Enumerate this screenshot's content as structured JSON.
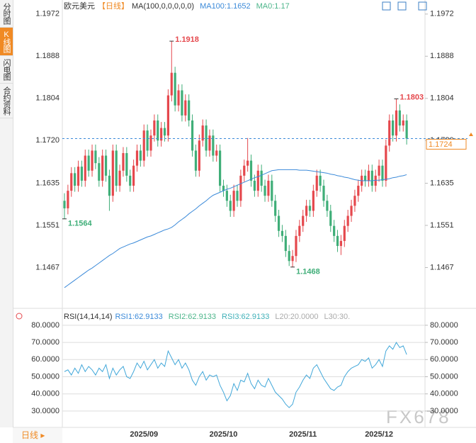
{
  "sidebar": {
    "tabs": [
      "分时图",
      "K线图",
      "闪电图",
      "合约资料"
    ]
  },
  "footer": {
    "period": "日线"
  },
  "watermark": "FX678",
  "chart_data": [
    {
      "type": "candlestick",
      "title": "欧元美元",
      "period": "【日线】",
      "legend": [
        {
          "text": "MA(100,0,0,0,0,0)",
          "color": "#333333"
        },
        {
          "text": "MA100:1.1652",
          "color": "#3b8ad9"
        },
        {
          "text": "MA0:1.17",
          "color": "#4cb58a"
        }
      ],
      "up_color": "#e5484d",
      "down_color": "#3fae78",
      "grid": false,
      "categories": [
        null,
        null,
        null,
        null,
        null,
        null,
        null,
        null,
        null,
        null,
        null,
        null,
        null,
        null,
        null,
        null,
        null,
        null,
        null,
        null,
        null,
        null,
        null,
        "2025/09",
        null,
        null,
        null,
        null,
        null,
        null,
        null,
        null,
        null,
        null,
        null,
        null,
        null,
        null,
        null,
        null,
        null,
        null,
        null,
        null,
        null,
        null,
        "2025/10",
        null,
        null,
        null,
        null,
        null,
        null,
        null,
        null,
        null,
        null,
        null,
        null,
        null,
        null,
        null,
        null,
        null,
        null,
        null,
        null,
        null,
        null,
        "2025/11",
        null,
        null,
        null,
        null,
        null,
        null,
        null,
        null,
        null,
        null,
        null,
        null,
        null,
        null,
        null,
        null,
        null,
        null,
        null,
        null,
        null,
        "2025/12",
        null,
        null,
        null,
        null,
        null,
        null,
        null,
        null
      ],
      "open": [
        1.16,
        1.1585,
        1.162,
        1.1655,
        1.163,
        1.1668,
        1.164,
        1.169,
        1.166,
        1.17,
        1.1675,
        1.164,
        1.169,
        1.165,
        1.161,
        1.17,
        1.163,
        1.166,
        1.1695,
        1.165,
        1.163,
        1.167,
        1.17,
        1.168,
        1.174,
        1.17,
        1.173,
        1.176,
        1.172,
        1.1745,
        1.173,
        1.181,
        1.1855,
        1.179,
        1.182,
        1.177,
        1.18,
        1.176,
        1.17,
        1.166,
        1.172,
        1.175,
        1.17,
        1.173,
        1.169,
        1.17,
        1.163,
        1.162,
        1.16,
        1.158,
        1.162,
        1.16,
        1.165,
        1.167,
        1.168,
        1.164,
        1.162,
        1.166,
        1.163,
        1.161,
        1.164,
        1.16,
        1.157,
        1.154,
        1.153,
        1.15,
        1.148,
        1.149,
        1.153,
        1.155,
        1.157,
        1.159,
        1.158,
        1.162,
        1.165,
        1.163,
        1.16,
        1.158,
        1.155,
        1.153,
        1.151,
        1.152,
        1.155,
        1.157,
        1.159,
        1.161,
        1.163,
        1.165,
        1.164,
        1.166,
        1.163,
        1.165,
        1.167,
        1.164,
        1.171,
        1.176,
        1.173,
        1.178,
        1.175,
        1.176
      ],
      "high": [
        1.1615,
        1.1632,
        1.1667,
        1.1667,
        1.168,
        1.168,
        1.1702,
        1.1702,
        1.1712,
        1.1712,
        1.1687,
        1.1702,
        1.1702,
        1.1662,
        1.1712,
        1.1712,
        1.1672,
        1.1707,
        1.1707,
        1.1662,
        1.1682,
        1.1712,
        1.1712,
        1.1752,
        1.1752,
        1.1742,
        1.1772,
        1.1772,
        1.1757,
        1.1757,
        1.1822,
        1.1918,
        1.1867,
        1.1832,
        1.1832,
        1.1812,
        1.1812,
        1.1772,
        1.1712,
        1.1732,
        1.1762,
        1.1762,
        1.1742,
        1.1742,
        1.1712,
        1.1712,
        1.1642,
        1.1632,
        1.1612,
        1.1632,
        1.1632,
        1.1662,
        1.1682,
        1.1725,
        1.1692,
        1.1652,
        1.1672,
        1.1672,
        1.1642,
        1.1652,
        1.1652,
        1.1612,
        1.1582,
        1.1552,
        1.1542,
        1.1512,
        1.1502,
        1.1542,
        1.1562,
        1.1582,
        1.1602,
        1.1602,
        1.1632,
        1.1662,
        1.1662,
        1.1642,
        1.1612,
        1.1592,
        1.1562,
        1.1542,
        1.1532,
        1.1562,
        1.1582,
        1.1602,
        1.1622,
        1.1642,
        1.1662,
        1.1662,
        1.1672,
        1.1672,
        1.1662,
        1.1682,
        1.1682,
        1.1722,
        1.1772,
        1.1772,
        1.1803,
        1.1792,
        1.1772,
        1.1772
      ],
      "low": [
        1.1564,
        1.1573,
        1.1608,
        1.1618,
        1.1618,
        1.1628,
        1.1628,
        1.1648,
        1.1648,
        1.1663,
        1.1628,
        1.1628,
        1.1638,
        1.158,
        1.1598,
        1.1618,
        1.1618,
        1.1648,
        1.1638,
        1.1618,
        1.1618,
        1.1658,
        1.1668,
        1.1668,
        1.1688,
        1.1688,
        1.1718,
        1.1708,
        1.1708,
        1.1718,
        1.1718,
        1.1798,
        1.1778,
        1.1778,
        1.1758,
        1.1758,
        1.1748,
        1.1688,
        1.1648,
        1.1648,
        1.1708,
        1.1688,
        1.1688,
        1.1678,
        1.1678,
        1.1618,
        1.1608,
        1.1588,
        1.1568,
        1.1568,
        1.1588,
        1.1588,
        1.1638,
        1.1658,
        1.1628,
        1.1608,
        1.1608,
        1.1618,
        1.1598,
        1.1598,
        1.1588,
        1.1558,
        1.1528,
        1.1518,
        1.1488,
        1.147,
        1.1468,
        1.1478,
        1.1518,
        1.1538,
        1.1558,
        1.1568,
        1.1568,
        1.1608,
        1.1618,
        1.1588,
        1.1568,
        1.1538,
        1.1518,
        1.1498,
        1.1492,
        1.1508,
        1.1538,
        1.1558,
        1.1578,
        1.1598,
        1.1618,
        1.1628,
        1.1628,
        1.1618,
        1.1618,
        1.1638,
        1.1628,
        1.1628,
        1.1698,
        1.1718,
        1.1718,
        1.1738,
        1.1738,
        1.1712
      ],
      "close": [
        1.1585,
        1.162,
        1.1655,
        1.163,
        1.1668,
        1.164,
        1.169,
        1.166,
        1.17,
        1.1675,
        1.164,
        1.169,
        1.165,
        1.161,
        1.17,
        1.163,
        1.166,
        1.1695,
        1.165,
        1.163,
        1.167,
        1.17,
        1.168,
        1.174,
        1.17,
        1.173,
        1.176,
        1.172,
        1.1745,
        1.173,
        1.181,
        1.1855,
        1.179,
        1.182,
        1.177,
        1.18,
        1.176,
        1.17,
        1.166,
        1.172,
        1.175,
        1.17,
        1.173,
        1.169,
        1.17,
        1.163,
        1.162,
        1.16,
        1.158,
        1.162,
        1.16,
        1.165,
        1.167,
        1.168,
        1.164,
        1.162,
        1.166,
        1.163,
        1.161,
        1.164,
        1.16,
        1.157,
        1.154,
        1.153,
        1.15,
        1.148,
        1.149,
        1.153,
        1.155,
        1.157,
        1.159,
        1.158,
        1.162,
        1.165,
        1.163,
        1.16,
        1.158,
        1.155,
        1.153,
        1.151,
        1.152,
        1.155,
        1.157,
        1.159,
        1.161,
        1.163,
        1.165,
        1.164,
        1.166,
        1.163,
        1.165,
        1.167,
        1.164,
        1.171,
        1.176,
        1.173,
        1.178,
        1.175,
        1.176,
        1.1724
      ],
      "series": [
        {
          "color": "#3b8ad9",
          "values": [
            1.1427,
            1.1432,
            1.1437,
            1.1442,
            1.1447,
            1.1452,
            1.1457,
            1.1462,
            1.1466,
            1.1471,
            1.1476,
            1.1481,
            1.1486,
            1.1491,
            1.1495,
            1.15,
            1.1505,
            1.1508,
            1.1511,
            1.1514,
            1.1516,
            1.1519,
            1.1522,
            1.1525,
            1.1528,
            1.153,
            1.1533,
            1.1536,
            1.1539,
            1.1542,
            1.1544,
            1.1547,
            1.1552,
            1.1558,
            1.1563,
            1.1568,
            1.1574,
            1.1579,
            1.1584,
            1.159,
            1.1595,
            1.16,
            1.1606,
            1.1611,
            1.1614,
            1.1617,
            1.162,
            1.1623,
            1.1625,
            1.1628,
            1.1631,
            1.1634,
            1.1637,
            1.164,
            1.1643,
            1.1646,
            1.1648,
            1.1651,
            1.1654,
            1.1657,
            1.166,
            1.1661,
            1.1662,
            1.1662,
            1.1662,
            1.1662,
            1.1662,
            1.1662,
            1.1661,
            1.1661,
            1.1661,
            1.166,
            1.1659,
            1.1658,
            1.1657,
            1.1656,
            1.1655,
            1.1653,
            1.1652,
            1.165,
            1.1649,
            1.1647,
            1.1646,
            1.1644,
            1.1642,
            1.1641,
            1.164,
            1.164,
            1.164,
            1.164,
            1.1641,
            1.1641,
            1.1642,
            1.1643,
            1.1644,
            1.1646,
            1.1647,
            1.1649,
            1.165,
            1.1652
          ]
        }
      ],
      "ylim": [
        1.139,
        1.2
      ],
      "yticks": [
        1.1467,
        1.1551,
        1.1635,
        {
          "value": 1.172,
          "label": "1.1720"
        },
        1.1804,
        1.1888,
        1.1972
      ]
    },
    {
      "type": "line",
      "title": "RSI(14,14,14)",
      "legend": [
        {
          "text": "RSI1:62.9133",
          "color": "#3b8ad9"
        },
        {
          "text": "RSI2:62.9133",
          "color": "#4cb58a"
        },
        {
          "text": "RSI3:62.9133",
          "color": "#3fb0b8"
        },
        {
          "text": "L20:20.0000",
          "color": "#aaaaaa"
        },
        {
          "text": "L30:30.",
          "color": "#aaaaaa"
        }
      ],
      "grid": true,
      "series": [
        {
          "color": "#41a7d9",
          "values": [
            53,
            54,
            51,
            55,
            52,
            57,
            53,
            56,
            54,
            51,
            55,
            53,
            57,
            49,
            55,
            51,
            54,
            56,
            50,
            49,
            53,
            58,
            55,
            59,
            54,
            57,
            60,
            55,
            58,
            56,
            65,
            61,
            57,
            60,
            55,
            58,
            54,
            48,
            45,
            50,
            53,
            48,
            51,
            50,
            51,
            45,
            41,
            36,
            39,
            46,
            42,
            48,
            47,
            52,
            46,
            43,
            48,
            45,
            44,
            49,
            45,
            41,
            39,
            37,
            34,
            32,
            34,
            41,
            44,
            48,
            51,
            49,
            55,
            57,
            53,
            49,
            46,
            43,
            42,
            44,
            45,
            50,
            53,
            55,
            56,
            57,
            60,
            59,
            61,
            55,
            57,
            60,
            56,
            65,
            68,
            66,
            70,
            67,
            68,
            62.9133
          ]
        }
      ],
      "ylim": [
        21.7,
        87.8
      ],
      "yticks": [
        {
          "value": 80,
          "label": "80.0000"
        },
        {
          "value": 70,
          "label": "70.0000"
        },
        {
          "value": 60,
          "label": "60.0000"
        },
        {
          "value": 50,
          "label": "50.0000"
        },
        {
          "value": 40,
          "label": "40.0000"
        },
        {
          "value": 30,
          "label": "30.0000"
        }
      ]
    }
  ]
}
